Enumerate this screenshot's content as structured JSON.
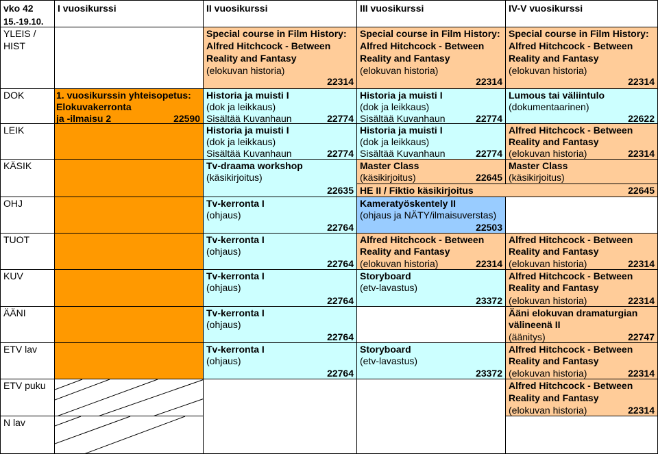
{
  "corner": {
    "week": "vko 42",
    "dates": "15.-19.10."
  },
  "columns": {
    "c1": "I vuosikurssi",
    "c2": "II vuosikurssi",
    "c3": "III vuosikurssi",
    "c4": "IV-V vuosikurssi"
  },
  "rows": {
    "r1": "YLEIS /",
    "r1b": "HIST",
    "r2": "DOK",
    "r3": "LEIK",
    "r4": "KÄSIK",
    "r5": "OHJ",
    "r6": "TUOT",
    "r7": "KUV",
    "r8": "ÄÄNI",
    "r9": "ETV lav",
    "r10": "ETV puku",
    "r11": "N lav"
  },
  "courses": {
    "hitch_special": {
      "l1": "Special course in Film History:",
      "l2": "Alfred Hitchcock - Between",
      "l3": "Reality and Fantasy",
      "l4": "(elokuvan historia)",
      "code": "22314"
    },
    "first_year": {
      "l1": "1. vuosikurssin yhteisopetus:",
      "l2": "Elokuvakerronta",
      "l3": "ja -ilmaisu 2",
      "code": "22590"
    },
    "historia": {
      "l1": "Historia ja muisti I",
      "l2": "(dok ja leikkaus)",
      "l3": "Sisältää Kuvanhaun",
      "code": "22774"
    },
    "lumous": {
      "l1": "Lumous tai väliintulo",
      "l2": "(dokumentaarinen)",
      "code": "22622"
    },
    "hitch": {
      "l1": "Alfred Hitchcock - Between",
      "l2": "Reality and Fantasy",
      "l3": "(elokuvan historia)",
      "code": "22314"
    },
    "tvdraama": {
      "l1": "Tv-draama workshop",
      "l2": "(käsikirjoitus)",
      "code": "22635"
    },
    "master": {
      "l1": "Master Class",
      "l2": "(käsikirjoitus)",
      "code": "22645"
    },
    "he2": "HE II / Fiktio käsikirjoitus",
    "he2_code": "22645",
    "tvkerronta": {
      "l1": "Tv-kerronta I",
      "l2": "(ohjaus)",
      "code": "22764"
    },
    "kamera": {
      "l1": "Kameratyöskentely II",
      "l2": "(ohjaus ja NÄTY/ilmaisuverstas)",
      "code": "22503"
    },
    "storyboard": {
      "l1": "Storyboard",
      "l2": "(etv-lavastus)",
      "code": "23372"
    },
    "aani": {
      "l1": "Ääni elokuvan dramaturgian",
      "l2": "välineenä II",
      "l3": "(äänitys)",
      "code": "22747"
    }
  }
}
